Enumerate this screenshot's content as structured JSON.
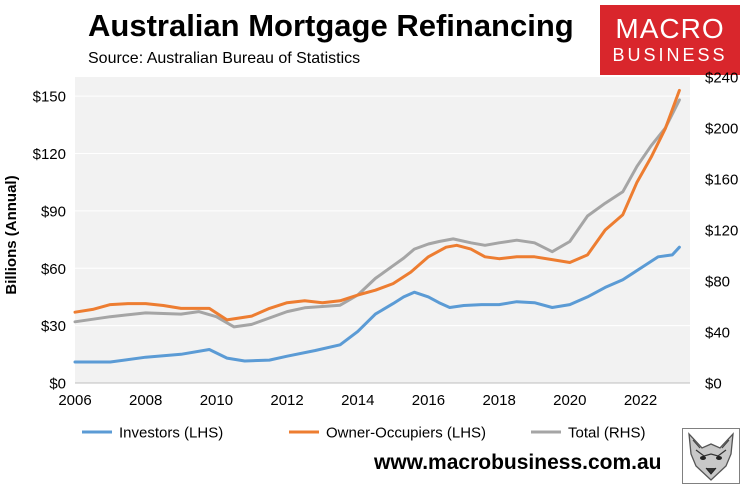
{
  "header": {
    "title": "Australian Mortgage Refinancing",
    "source": "Source: Australian Bureau of Statistics"
  },
  "logo": {
    "line1": "MACRO",
    "line2": "BUSINESS",
    "bg_color": "#d9262c"
  },
  "footer": {
    "url": "www.macrobusiness.com.au"
  },
  "colors": {
    "investors": "#5b9bd5",
    "owner_occupiers": "#ed7d31",
    "total": "#a5a5a5",
    "plot_bg": "#f2f2f2"
  },
  "chart_data": {
    "type": "line",
    "ylabel": "Billions (Annual)",
    "xlim": [
      2006,
      2023.4
    ],
    "ylim_left": [
      0,
      160
    ],
    "ylim_right": [
      0,
      240
    ],
    "x_ticks": [
      2006,
      2008,
      2010,
      2012,
      2014,
      2016,
      2018,
      2020,
      2022
    ],
    "x_tick_labels": [
      "2006",
      "2008",
      "2010",
      "2012",
      "2014",
      "2016",
      "2018",
      "2020",
      "2022"
    ],
    "y_left_ticks": [
      0,
      30,
      60,
      90,
      120,
      150
    ],
    "y_left_tick_labels": [
      "$0",
      "$30",
      "$60",
      "$90",
      "$120",
      "$150"
    ],
    "y_right_ticks": [
      0,
      40,
      80,
      120,
      160,
      200,
      240
    ],
    "y_right_tick_labels": [
      "$0",
      "$40",
      "$80",
      "$120",
      "$160",
      "$200",
      "$240"
    ],
    "legend_position": "bottom",
    "series": [
      {
        "name": "Investors (LHS)",
        "axis": "left",
        "color_key": "investors",
        "x": [
          2006.0,
          2007.0,
          2008.0,
          2009.0,
          2009.8,
          2010.3,
          2010.8,
          2011.5,
          2012.0,
          2012.8,
          2013.5,
          2014.0,
          2014.5,
          2015.0,
          2015.3,
          2015.6,
          2016.0,
          2016.3,
          2016.6,
          2017.0,
          2017.5,
          2018.0,
          2018.5,
          2019.0,
          2019.5,
          2020.0,
          2020.5,
          2021.0,
          2021.5,
          2022.0,
          2022.5,
          2022.9,
          2023.1
        ],
        "y": [
          11,
          11,
          13.5,
          15,
          17.5,
          13,
          11.5,
          12,
          14,
          17,
          20,
          27,
          36,
          41.5,
          45,
          47.5,
          45,
          42,
          39.5,
          40.5,
          41,
          41,
          42.5,
          42,
          39.5,
          41,
          45,
          50,
          54,
          60,
          66,
          67,
          71
        ]
      },
      {
        "name": "Owner-Occupiers (LHS)",
        "axis": "left",
        "color_key": "owner_occupiers",
        "x": [
          2006.0,
          2006.5,
          2007.0,
          2007.5,
          2008.0,
          2008.5,
          2009.0,
          2009.8,
          2010.3,
          2011.0,
          2011.5,
          2012.0,
          2012.5,
          2013.0,
          2013.5,
          2014.0,
          2014.5,
          2015.0,
          2015.5,
          2016.0,
          2016.5,
          2016.8,
          2017.2,
          2017.6,
          2018.0,
          2018.5,
          2019.0,
          2019.5,
          2020.0,
          2020.5,
          2021.0,
          2021.5,
          2021.9,
          2022.3,
          2022.7,
          2023.1
        ],
        "y": [
          37,
          38.5,
          41,
          41.5,
          41.5,
          40.5,
          39,
          39,
          33,
          35,
          39,
          42,
          43,
          42,
          43,
          46,
          48.5,
          52,
          58,
          66,
          71,
          72,
          70,
          66,
          65,
          66,
          66,
          64.5,
          63,
          67,
          80,
          88,
          105,
          118,
          133,
          153
        ]
      },
      {
        "name": "Total (RHS)",
        "axis": "right",
        "color_key": "total",
        "x": [
          2006.0,
          2007.0,
          2008.0,
          2009.0,
          2009.5,
          2010.0,
          2010.5,
          2011.0,
          2011.5,
          2012.0,
          2012.5,
          2013.0,
          2013.5,
          2014.0,
          2014.5,
          2015.0,
          2015.3,
          2015.6,
          2016.0,
          2016.3,
          2016.7,
          2017.2,
          2017.6,
          2018.0,
          2018.5,
          2019.0,
          2019.5,
          2020.0,
          2020.5,
          2021.0,
          2021.5,
          2021.9,
          2022.3,
          2022.7,
          2023.1
        ],
        "y": [
          48,
          52,
          55,
          54,
          56,
          52,
          44,
          46,
          51,
          56,
          59,
          60,
          61,
          69,
          82,
          92,
          98,
          105,
          109,
          111,
          113,
          110,
          108,
          110,
          112,
          110,
          103,
          111,
          131,
          141,
          150,
          170,
          186,
          200,
          222
        ]
      }
    ]
  }
}
